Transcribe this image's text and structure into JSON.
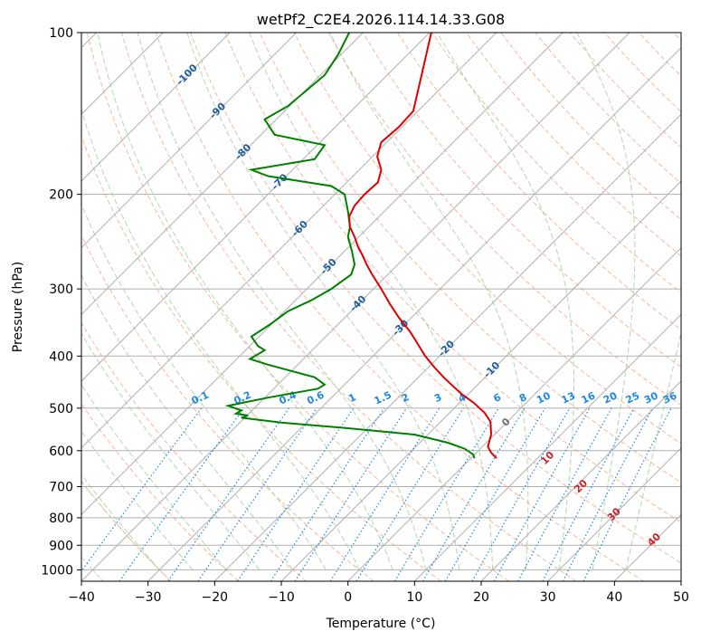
{
  "chart_data": {
    "type": "line",
    "title": "wetPf2_C2E4.2026.114.14.33.G08",
    "xlabel": "Temperature (°C)",
    "ylabel": "Pressure (hPa)",
    "xlim": [
      -40,
      50
    ],
    "ylim": [
      1050,
      100
    ],
    "y_scale": "log",
    "x_ticks": [
      -40,
      -30,
      -20,
      -10,
      0,
      10,
      20,
      30,
      40,
      50
    ],
    "y_ticks": [
      100,
      200,
      300,
      400,
      500,
      600,
      700,
      800,
      900,
      1000
    ],
    "grid": true,
    "colors": {
      "temperature": "#e00000",
      "dewpoint": "#008000",
      "isotherm": "#1f5f9f",
      "mixing_ratio": "#1e88e5",
      "dry_adiabat": "#f4a582",
      "moist_adiabat": "#9fd49f",
      "moist_adiabat_label": "#cc2222"
    },
    "series": [
      {
        "name": "Temperature",
        "points": [
          [
            12.5,
            100
          ],
          [
            11.4,
            115
          ],
          [
            10.4,
            130
          ],
          [
            9.8,
            140
          ],
          [
            7.6,
            150
          ],
          [
            5.0,
            160
          ],
          [
            4.4,
            170
          ],
          [
            5.0,
            180
          ],
          [
            4.5,
            190
          ],
          [
            2.5,
            200
          ],
          [
            1.0,
            210
          ],
          [
            0.2,
            220
          ],
          [
            0.3,
            230
          ],
          [
            1.0,
            240
          ],
          [
            1.5,
            250
          ],
          [
            2.2,
            260
          ],
          [
            2.8,
            270
          ],
          [
            3.5,
            280
          ],
          [
            5.0,
            300
          ],
          [
            6.3,
            320
          ],
          [
            7.7,
            340
          ],
          [
            9.3,
            360
          ],
          [
            10.5,
            380
          ],
          [
            11.6,
            400
          ],
          [
            13.0,
            420
          ],
          [
            14.5,
            440
          ],
          [
            17.0,
            470
          ],
          [
            19.0,
            490
          ],
          [
            20.5,
            510
          ],
          [
            21.4,
            530
          ],
          [
            21.5,
            560
          ],
          [
            21.0,
            590
          ],
          [
            21.5,
            605
          ],
          [
            22.3,
            620
          ]
        ]
      },
      {
        "name": "Dewpoint",
        "points": [
          [
            0.2,
            100
          ],
          [
            -1.5,
            110
          ],
          [
            -3.5,
            120
          ],
          [
            -9.0,
            137
          ],
          [
            -12.5,
            145
          ],
          [
            -11.0,
            155
          ],
          [
            -3.5,
            162
          ],
          [
            -5.0,
            172
          ],
          [
            -14.5,
            180
          ],
          [
            -12.0,
            185
          ],
          [
            -2.5,
            193
          ],
          [
            -0.5,
            200
          ],
          [
            0.0,
            215
          ],
          [
            0.3,
            230
          ],
          [
            0.0,
            240
          ],
          [
            0.6,
            255
          ],
          [
            1.0,
            270
          ],
          [
            0.5,
            282
          ],
          [
            -2.5,
            300
          ],
          [
            -5.5,
            315
          ],
          [
            -9.0,
            330
          ],
          [
            -11.8,
            350
          ],
          [
            -14.5,
            368
          ],
          [
            -13.5,
            383
          ],
          [
            -12.5,
            390
          ],
          [
            -14.7,
            405
          ],
          [
            -12.0,
            415
          ],
          [
            -5.0,
            438
          ],
          [
            -3.5,
            452
          ],
          [
            -4.5,
            460
          ],
          [
            -12.0,
            478
          ],
          [
            -18.0,
            495
          ],
          [
            -16.0,
            505
          ],
          [
            -16.8,
            512
          ],
          [
            -15.0,
            516
          ],
          [
            -16.0,
            521
          ],
          [
            -10.0,
            532
          ],
          [
            0.0,
            545
          ],
          [
            10.0,
            560
          ],
          [
            15.0,
            580
          ],
          [
            17.5,
            595
          ],
          [
            18.8,
            610
          ],
          [
            19.0,
            620
          ]
        ]
      }
    ],
    "isotherm_labels": [
      "-100",
      "-90",
      "-80",
      "-70",
      "-60",
      "-50",
      "-40",
      "-30",
      "-20",
      "-10",
      "0"
    ],
    "isotherm_label_values": [
      -100,
      -90,
      -80,
      -70,
      -60,
      -50,
      -40,
      -30,
      -20,
      -10,
      0
    ],
    "mixing_ratio_labels": [
      "0.1",
      "0.2",
      "0.4",
      "0.6",
      "1",
      "1.5",
      "2",
      "3",
      "4",
      "6",
      "8",
      "10",
      "13",
      "16",
      "20",
      "25",
      "30",
      "36"
    ],
    "mixing_ratio_values": [
      0.1,
      0.2,
      0.4,
      0.6,
      1,
      1.5,
      2,
      3,
      4,
      6,
      8,
      10,
      13,
      16,
      20,
      25,
      30,
      36
    ],
    "moist_adiabat_labels": [
      "10",
      "20",
      "30",
      "40"
    ]
  }
}
